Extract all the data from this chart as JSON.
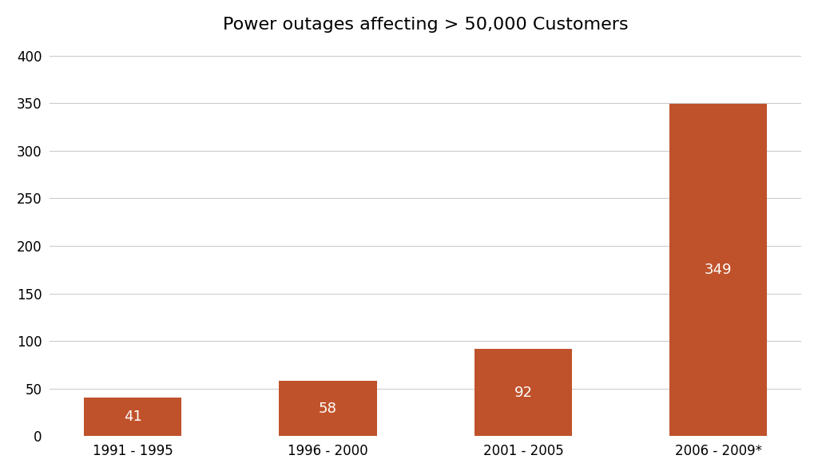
{
  "categories": [
    "1991 - 1995",
    "1996 - 2000",
    "2001 - 2005",
    "2006 - 2009*"
  ],
  "values": [
    41,
    58,
    92,
    349
  ],
  "bar_color": "#C0522B",
  "label_color": "#FFFFFF",
  "title": "Power outages affecting > 50,000 Customers",
  "title_fontsize": 16,
  "label_fontsize": 13,
  "tick_fontsize": 12,
  "ylim": [
    0,
    410
  ],
  "yticks": [
    0,
    50,
    100,
    150,
    200,
    250,
    300,
    350,
    400
  ],
  "background_color": "#FFFFFF",
  "grid_color": "#CCCCCC",
  "bar_width": 0.5
}
